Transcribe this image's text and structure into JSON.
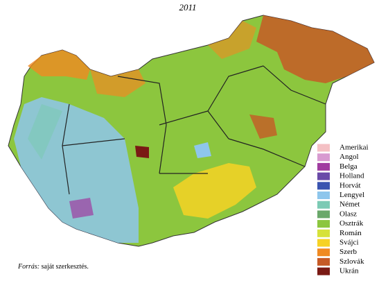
{
  "title": "2011",
  "legend": [
    {
      "label": "Amerikai",
      "color": "#f4c0c4"
    },
    {
      "label": "Angol",
      "color": "#d89ad0"
    },
    {
      "label": "Belga",
      "color": "#a03ca0"
    },
    {
      "label": "Holland",
      "color": "#6a4aa8"
    },
    {
      "label": "Horvát",
      "color": "#3a54b0"
    },
    {
      "label": "Lengyel",
      "color": "#8ec6ec"
    },
    {
      "label": "Német",
      "color": "#7ccab4"
    },
    {
      "label": "Olasz",
      "color": "#6aa86a"
    },
    {
      "label": "Osztrák",
      "color": "#8cc63e"
    },
    {
      "label": "Román",
      "color": "#d6e23a"
    },
    {
      "label": "Svájci",
      "color": "#f6d224"
    },
    {
      "label": "Szerb",
      "color": "#f08a22"
    },
    {
      "label": "Szlovák",
      "color": "#c65a26"
    },
    {
      "label": "Ukrán",
      "color": "#7a1a14"
    }
  ],
  "source": {
    "label": "Forrás:",
    "text": "saját szerkesztés."
  }
}
